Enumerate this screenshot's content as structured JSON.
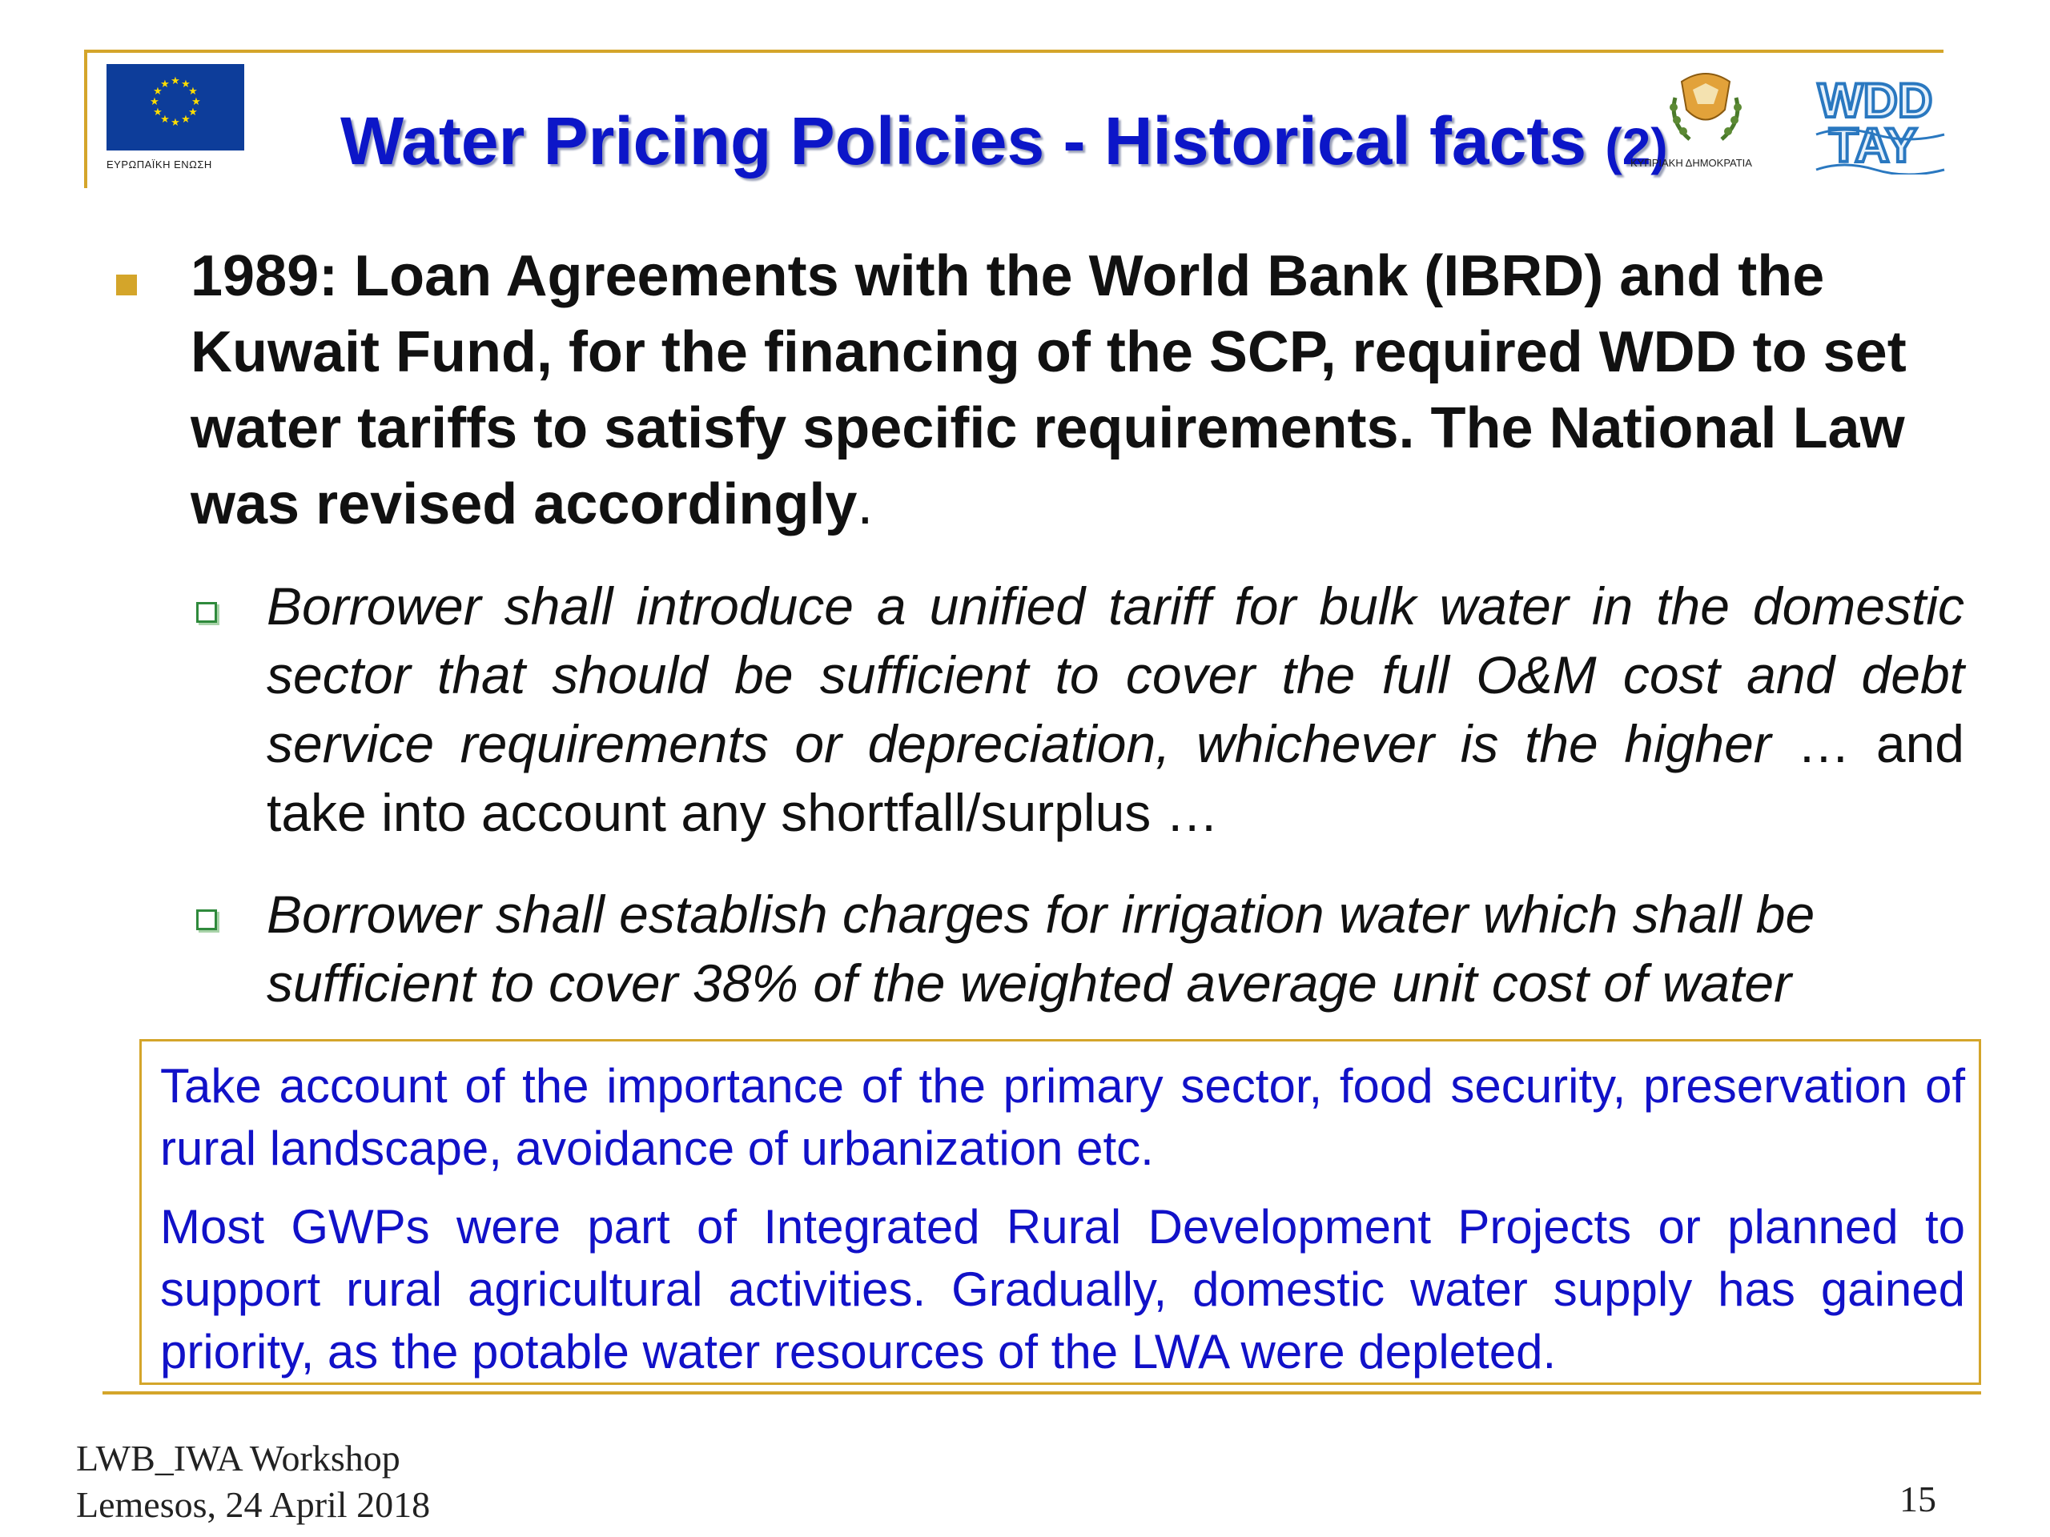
{
  "header": {
    "title_main": "Water Pricing Policies - Historical facts ",
    "title_num": "(2)",
    "eu_caption": "ΕΥΡΩΠΑΪΚΗ ΕΝΩΣΗ",
    "cy_caption": "ΚΥΠΡΙΑΚΗ ΔΗΜΟΚΡΑΤΙΑ",
    "wdd_line1": "WDD",
    "wdd_line2": "ΤΑΥ"
  },
  "main_bullet": {
    "text": "1989: Loan Agreements with the World Bank (IBRD) and the Kuwait Fund, for the financing of the SCP, required WDD to set water tariffs to satisfy specific requirements. The National Law was revised accordingly",
    "trailing": "."
  },
  "sub_bullets": [
    {
      "italic": "Borrower shall introduce a unified tariff for bulk water in the domestic sector that should be sufficient to cover the full O&M cost and debt service requirements or depreciation, whichever is the higher",
      "regular": " … and take into account any shortfall/surplus …"
    },
    {
      "italic": "Borrower shall establish charges for irrigation water which shall be sufficient to cover 38% of the weighted average unit cost of water"
    }
  ],
  "box": {
    "para1": "Take account of the importance of the primary sector, food security, preservation of rural landscape, avoidance of urbanization etc.",
    "para2": "Most GWPs were part of Integrated Rural Development Projects or planned to support rural agricultural activities. Gradually, domestic water supply has gained priority, as the potable water resources of the LWA were depleted."
  },
  "footer": {
    "line1": "LWB_IWA Workshop",
    "line2": "Lemesos, 24 April 2018",
    "page_number": "15"
  },
  "colors": {
    "accent_gold": "#d4a52a",
    "title_blue": "#0c16c8",
    "box_text_blue": "#1111c8",
    "eu_blue": "#0d3d9a",
    "eu_star": "#ffdd00"
  },
  "icons": [
    "eu-flag-icon",
    "cyprus-emblem-icon",
    "wdd-logo-icon",
    "square-bullet-icon",
    "checkbox-bullet-icon"
  ]
}
